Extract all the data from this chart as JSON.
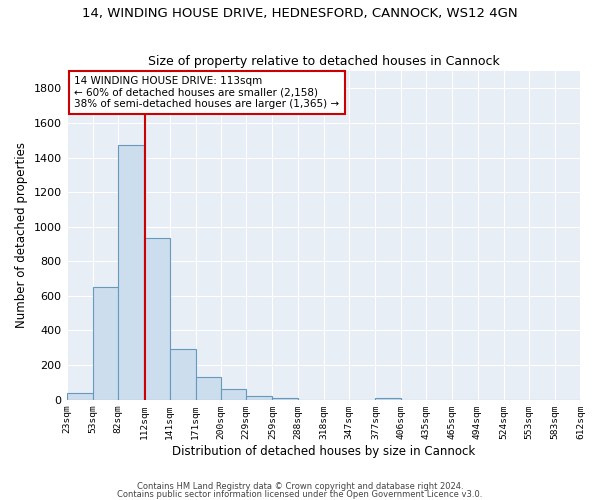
{
  "title": "14, WINDING HOUSE DRIVE, HEDNESFORD, CANNOCK, WS12 4GN",
  "subtitle": "Size of property relative to detached houses in Cannock",
  "xlabel": "Distribution of detached houses by size in Cannock",
  "ylabel": "Number of detached properties",
  "bar_color": "#ccdded",
  "bar_edge_color": "#6699bb",
  "background_color": "#e8eef6",
  "grid_color": "#ffffff",
  "property_size": 113,
  "annotation_line_color": "#cc0000",
  "annotation_box_text": [
    "14 WINDING HOUSE DRIVE: 113sqm",
    "← 60% of detached houses are smaller (2,158)",
    "38% of semi-detached houses are larger (1,365) →"
  ],
  "bins": [
    23,
    53,
    82,
    112,
    141,
    171,
    200,
    229,
    259,
    288,
    318,
    347,
    377,
    406,
    435,
    465,
    494,
    524,
    553,
    583,
    612
  ],
  "counts": [
    38,
    650,
    1475,
    935,
    290,
    130,
    60,
    22,
    12,
    0,
    0,
    0,
    12,
    0,
    0,
    0,
    0,
    0,
    0,
    0
  ],
  "ylim": [
    0,
    1900
  ],
  "ytick_interval": 200,
  "footnote1": "Contains HM Land Registry data © Crown copyright and database right 2024.",
  "footnote2": "Contains public sector information licensed under the Open Government Licence v3.0."
}
